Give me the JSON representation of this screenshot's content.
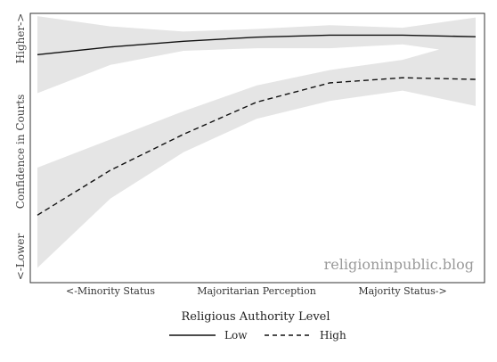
{
  "chart_data": {
    "type": "line",
    "x": [
      0,
      1,
      2,
      3,
      4,
      5,
      6
    ],
    "xlim": [
      0,
      6
    ],
    "ylim": [
      0,
      1
    ],
    "xlabel": "Religious Authority Level",
    "x_ticks": [
      {
        "x": 1,
        "label": "<-Minority Status"
      },
      {
        "x": 3,
        "label": "Majoritarian Perception"
      },
      {
        "x": 5,
        "label": "Majority Status->"
      }
    ],
    "ylabel": "Confidence in Courts",
    "ylabel_low": "<-Lower",
    "ylabel_high": "Higher->",
    "series": [
      {
        "name": "Low",
        "line_style": "solid",
        "values": [
          0.86,
          0.89,
          0.912,
          0.928,
          0.936,
          0.936,
          0.93
        ],
        "lower": [
          0.71,
          0.82,
          0.875,
          0.885,
          0.885,
          0.9,
          0.86
        ],
        "upper": [
          1.01,
          0.97,
          0.95,
          0.96,
          0.975,
          0.965,
          1.005
        ]
      },
      {
        "name": "High",
        "line_style": "dashed",
        "values": [
          0.235,
          0.41,
          0.55,
          0.675,
          0.75,
          0.77,
          0.764
        ],
        "lower": [
          0.03,
          0.3,
          0.48,
          0.61,
          0.68,
          0.72,
          0.66
        ],
        "upper": [
          0.42,
          0.53,
          0.64,
          0.74,
          0.8,
          0.84,
          0.92
        ]
      }
    ],
    "band_color": "#e5e5e5",
    "line_color": "#111111",
    "grid": false,
    "legend_position": "bottom"
  },
  "watermark": "religioninpublic.blog"
}
